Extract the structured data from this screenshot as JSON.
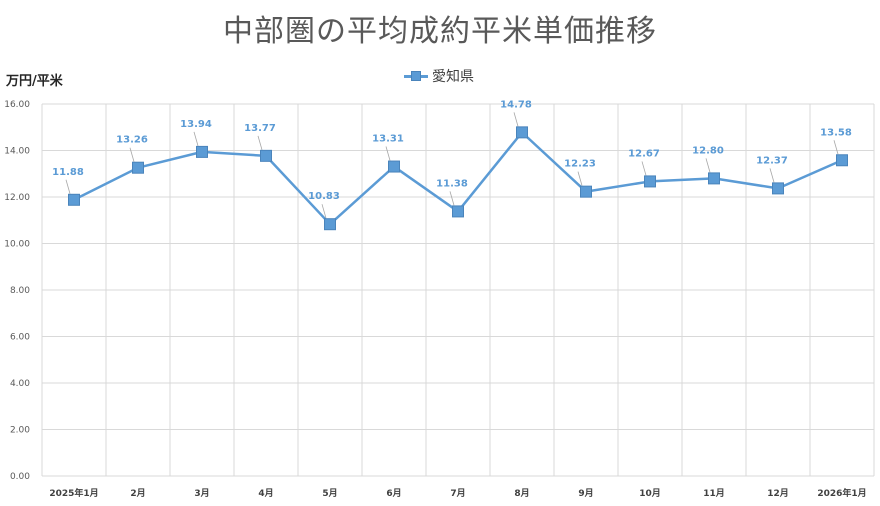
{
  "title": "中部圏の平均成約平米単価推移",
  "chart_data": {
    "type": "line",
    "title": "中部圏の平均成約平米単価推移",
    "ylabel": "万円/平米",
    "xlabel": "",
    "categories": [
      "2025年1月",
      "2月",
      "3月",
      "4月",
      "5月",
      "6月",
      "7月",
      "8月",
      "9月",
      "10月",
      "11月",
      "12月",
      "2026年1月"
    ],
    "series": [
      {
        "name": "愛知県",
        "values": [
          11.88,
          13.26,
          13.94,
          13.77,
          10.83,
          13.31,
          11.38,
          14.78,
          12.23,
          12.67,
          12.8,
          12.37,
          13.58
        ],
        "labels": [
          "11.88",
          "13.26",
          "13.94",
          "13.77",
          "10.83",
          "13.31",
          "11.38",
          "14.78",
          "12.23",
          "12.67",
          "12.80",
          "12.37",
          "13.58"
        ]
      }
    ],
    "ylim": [
      0,
      16
    ],
    "yticks": [
      "0.00",
      "2.00",
      "4.00",
      "6.00",
      "8.00",
      "10.00",
      "12.00",
      "14.00",
      "16.00"
    ],
    "grid": true,
    "legend_position": "top-center",
    "colors": {
      "series": "#5b9bd5",
      "grid": "#d9d9d9",
      "title": "#595959"
    }
  }
}
